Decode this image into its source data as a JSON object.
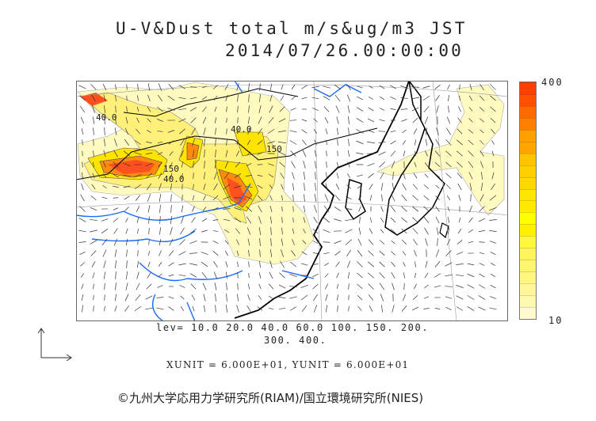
{
  "title": {
    "line1": "U-V&Dust total m/s&ug/m3 JST",
    "line2": "2014/07/26.00:00:00"
  },
  "colorbar": {
    "max_label": "400",
    "min_label": "10",
    "colors": [
      "#fffad0",
      "#fff8b0",
      "#fff79a",
      "#fff780",
      "#fff56e",
      "#fff45c",
      "#fff73a",
      "#fff000",
      "#ffff00",
      "#ffea00",
      "#ffe600",
      "#ffd800",
      "#ffd000",
      "#ffc400",
      "#ffa500",
      "#ffa000",
      "#ff8000",
      "#ff6a00",
      "#ff5000",
      "#ff4000"
    ]
  },
  "contour_labels": [
    "40.0",
    "40.0",
    "150",
    "40.0",
    "150"
  ],
  "levels": {
    "line1": "lev= 10.0 20.0 40.0 60.0 100. 150. 200.",
    "line2": "300. 400."
  },
  "units": "XUNIT = 6.000E+01, YUNIT = 6.000E+01",
  "copyright": "©九州大学応用力学研究所(RIAM)/国立環境研究所(NIES)",
  "colors": {
    "river": "#1a6cff",
    "coast": "#000000",
    "light_dust": "#fffac0",
    "mid_dust": "#ffe800",
    "high_dust": "#ff5020"
  }
}
